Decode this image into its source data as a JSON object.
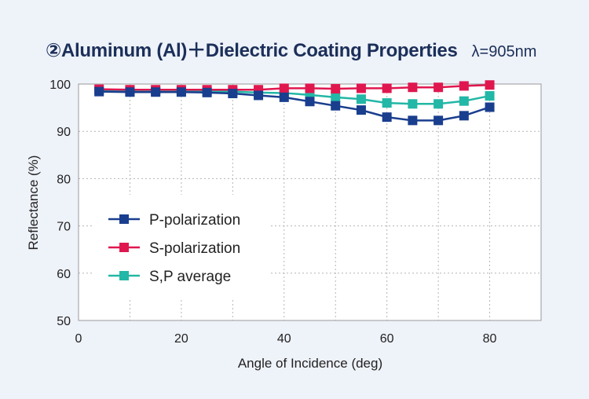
{
  "chart_data": {
    "type": "line",
    "title": "②Aluminum (Al)＋Dielectric Coating Properties",
    "subtitle": "λ=905nm",
    "xlabel": "Angle of Incidence (deg)",
    "ylabel": "Reflectance (%)",
    "xlim": [
      0,
      90
    ],
    "ylim": [
      50,
      100
    ],
    "xticks": [
      0,
      20,
      40,
      60,
      80
    ],
    "yticks": [
      50,
      60,
      70,
      80,
      90,
      100
    ],
    "grid": true,
    "legend_position": "center-left",
    "x": [
      4,
      10,
      15,
      20,
      25,
      30,
      35,
      40,
      45,
      50,
      55,
      60,
      65,
      70,
      75,
      80
    ],
    "series": [
      {
        "name": "P-polarization",
        "color": "#1a3e8e",
        "values": [
          98.4,
          98.3,
          98.3,
          98.3,
          98.2,
          98.0,
          97.6,
          97.2,
          96.3,
          95.4,
          94.5,
          93.0,
          92.3,
          92.3,
          93.3,
          95.1
        ]
      },
      {
        "name": "S-polarization",
        "color": "#e0174f",
        "values": [
          98.9,
          98.8,
          98.8,
          98.8,
          98.8,
          98.8,
          98.8,
          99.1,
          99.1,
          99.0,
          99.1,
          99.1,
          99.3,
          99.3,
          99.6,
          99.8
        ]
      },
      {
        "name": "S,P average",
        "color": "#22b7a6",
        "values": [
          98.6,
          98.5,
          98.5,
          98.5,
          98.5,
          98.4,
          98.2,
          98.1,
          97.7,
          97.2,
          96.8,
          96.0,
          95.8,
          95.8,
          96.4,
          97.5
        ]
      }
    ]
  }
}
